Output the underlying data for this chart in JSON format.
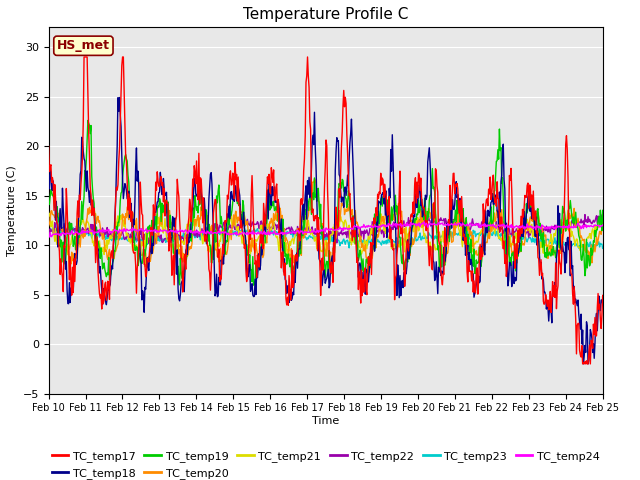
{
  "title": "Temperature Profile C",
  "xlabel": "Time",
  "ylabel": "Temperature (C)",
  "ylim": [
    -5,
    32
  ],
  "yticks": [
    -5,
    0,
    5,
    10,
    15,
    20,
    25,
    30
  ],
  "annotation_text": "HS_met",
  "annotation_color": "#8B0000",
  "annotation_bg": "#FFFFCC",
  "series_colors": {
    "TC_temp17": "#FF0000",
    "TC_temp18": "#00008B",
    "TC_temp19": "#00CC00",
    "TC_temp20": "#FF8C00",
    "TC_temp21": "#DDDD00",
    "TC_temp22": "#9900AA",
    "TC_temp23": "#00CCCC",
    "TC_temp24": "#FF00FF"
  },
  "xtick_labels": [
    "Feb 10",
    "Feb 11",
    "Feb 12",
    "Feb 13",
    "Feb 14",
    "Feb 15",
    "Feb 16",
    "Feb 17",
    "Feb 18",
    "Feb 19",
    "Feb 20",
    "Feb 21",
    "Feb 22",
    "Feb 23",
    "Feb 24",
    "Feb 25"
  ],
  "bg_color": "#E8E8E8",
  "fig_bg": "#FFFFFF",
  "grid_color": "#FFFFFF",
  "linewidth": 1.0,
  "fig_width": 6.4,
  "fig_height": 4.8,
  "dpi": 100
}
